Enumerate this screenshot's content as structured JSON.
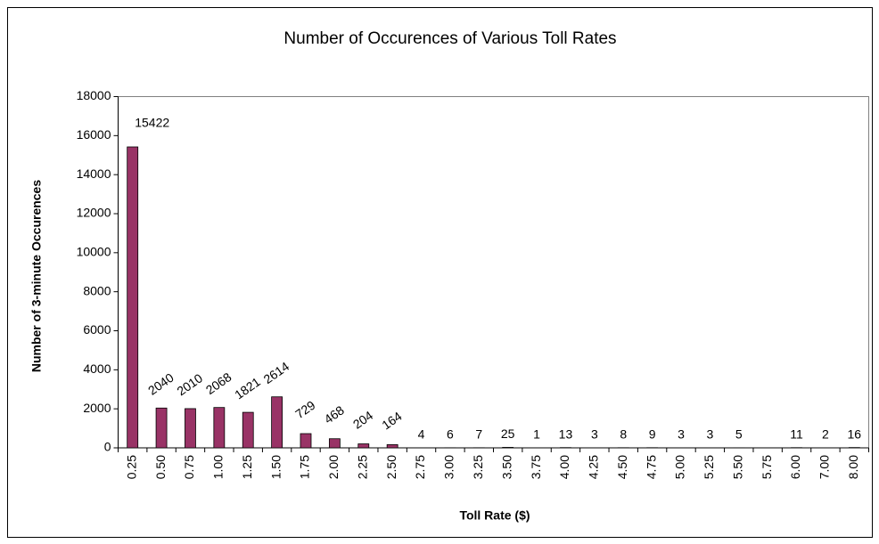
{
  "chart_data": {
    "type": "bar",
    "title": "Number of Occurences of Various Toll Rates",
    "x_label": "Toll Rate ($)",
    "y_label": "Number of 3-minute Occurences",
    "categories": [
      "0.25",
      "0.50",
      "0.75",
      "1.00",
      "1.25",
      "1.50",
      "1.75",
      "2.00",
      "2.25",
      "2.50",
      "2.75",
      "3.00",
      "3.25",
      "3.50",
      "3.75",
      "4.00",
      "4.25",
      "4.50",
      "4.75",
      "5.00",
      "5.25",
      "5.50",
      "5.75",
      "6.00",
      "7.00",
      "8.00"
    ],
    "values": [
      15422,
      2040,
      2010,
      2068,
      1821,
      2614,
      729,
      468,
      204,
      164,
      4,
      6,
      7,
      25,
      1,
      13,
      3,
      8,
      9,
      3,
      3,
      5,
      null,
      11,
      2,
      16
    ],
    "color": "#993366",
    "ylim": [
      0,
      18000
    ],
    "yticks": [
      0,
      2000,
      4000,
      6000,
      8000,
      10000,
      12000,
      14000,
      16000,
      18000
    ],
    "grid": false
  }
}
